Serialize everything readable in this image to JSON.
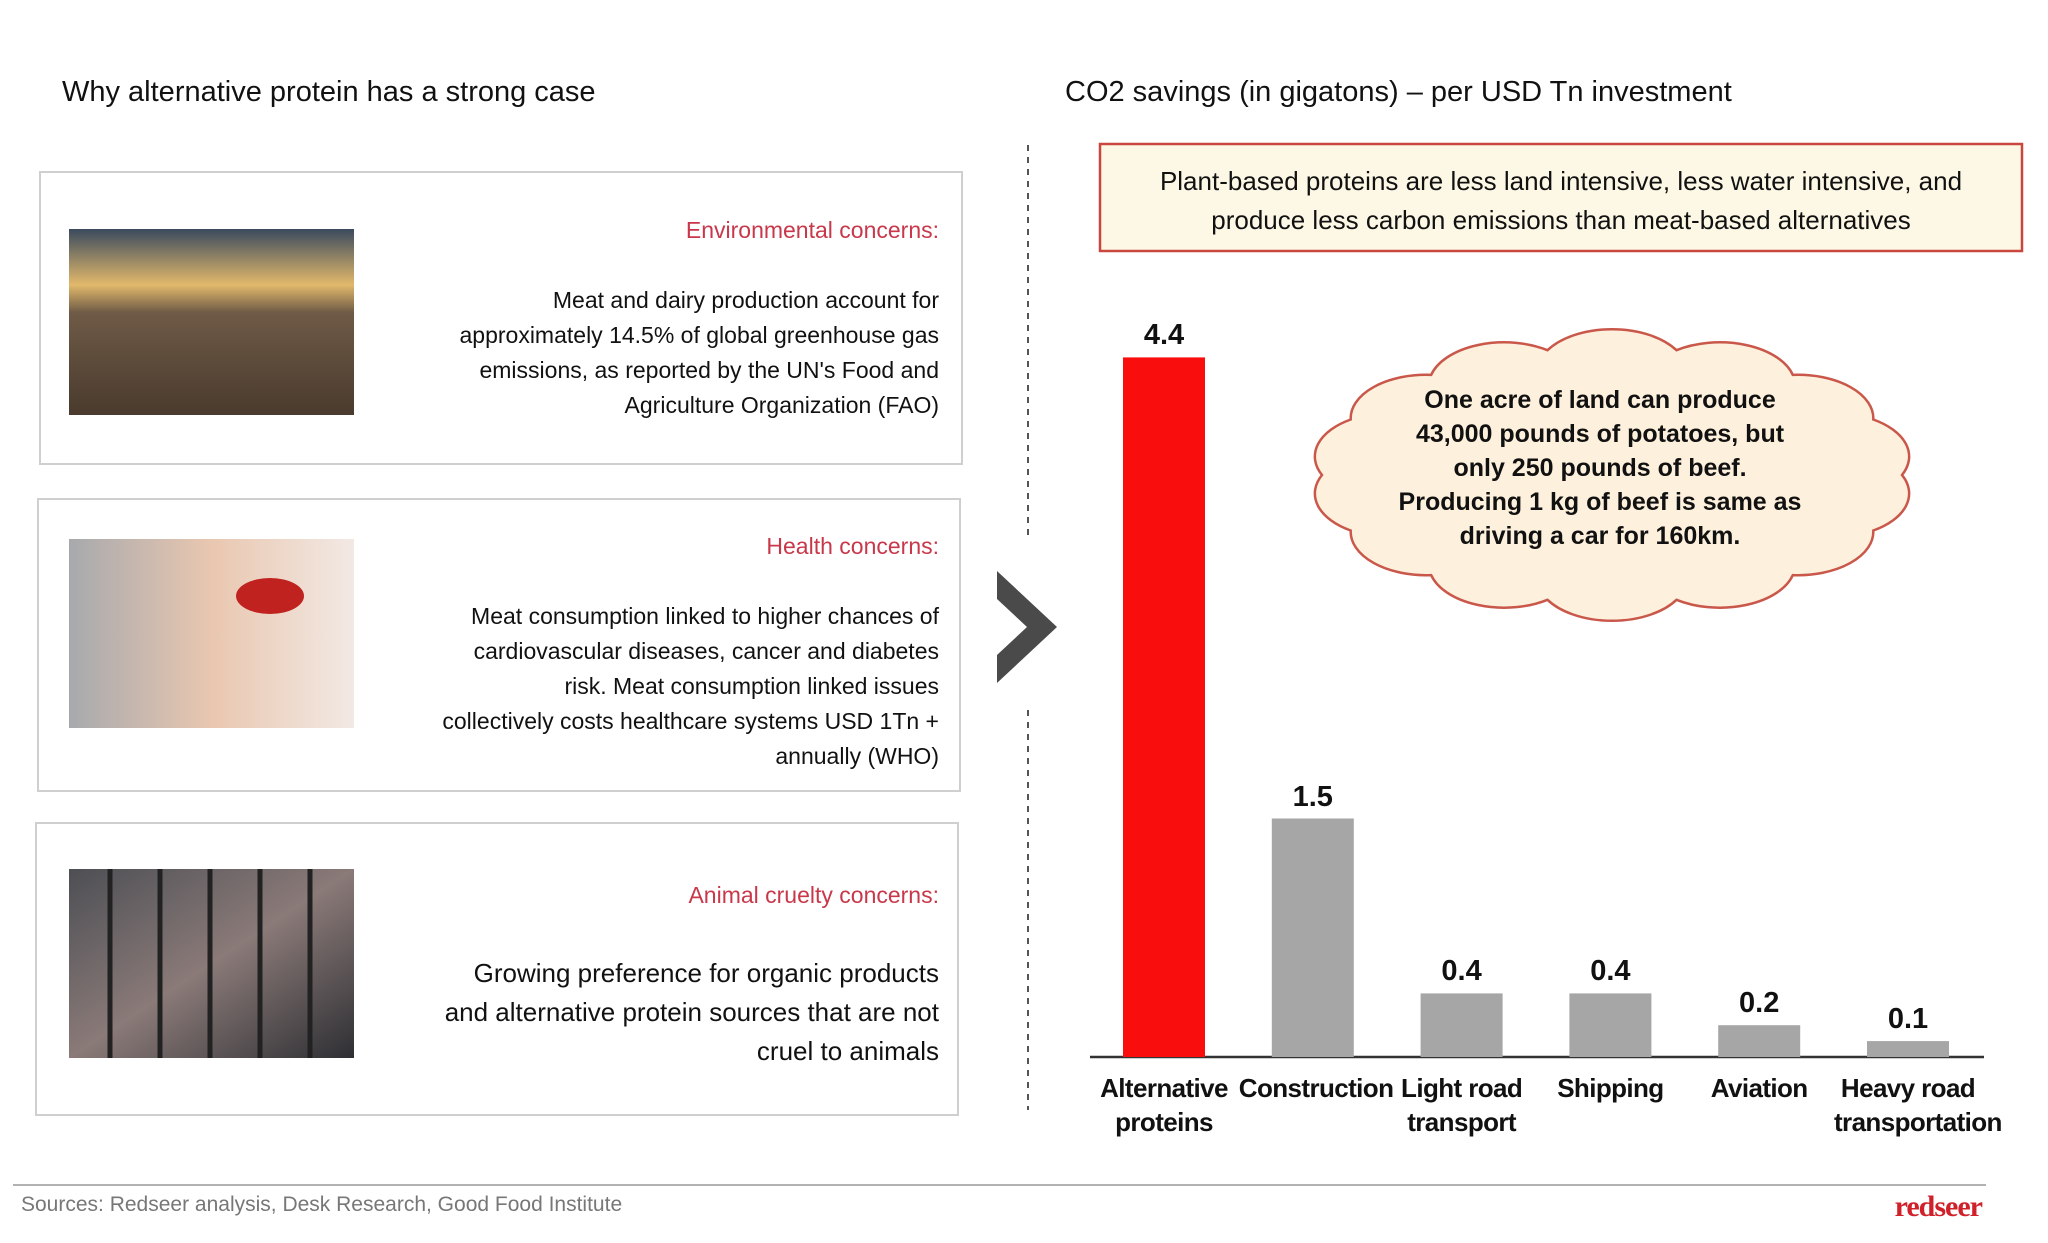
{
  "left": {
    "title": "Why alternative protein has a strong case",
    "cards": [
      {
        "heading": "Environmental concerns:",
        "lines": [
          "Meat and dairy production account for",
          "approximately 14.5% of global greenhouse gas",
          "emissions, as reported by the UN's Food and",
          "Agriculture Organization (FAO)"
        ]
      },
      {
        "heading": "Health concerns:",
        "lines": [
          "Meat consumption linked to higher chances of",
          "cardiovascular diseases, cancer and diabetes",
          "risk. Meat consumption linked issues",
          "collectively costs healthcare systems USD 1Tn +",
          "annually (WHO)"
        ]
      },
      {
        "heading": "Animal cruelty concerns:",
        "lines": [
          "Growing preference for organic products",
          "and alternative protein sources that are not",
          "cruel to animals"
        ]
      }
    ]
  },
  "chart_data": {
    "type": "bar",
    "title": "CO2 savings (in gigatons) – per USD Tn investment",
    "callout": [
      "Plant-based proteins are less land intensive, less water intensive, and",
      "produce less carbon emissions than meat-based alternatives"
    ],
    "cloud": [
      "One acre of land can produce",
      "43,000 pounds of potatoes, but",
      "only 250 pounds of beef.",
      "Producing 1 kg of beef is same as",
      "driving a car for 160km."
    ],
    "categories": [
      "Alternative proteins",
      "Construction",
      "Light road transport",
      "Shipping",
      "Aviation",
      "Heavy road transportation"
    ],
    "values": [
      4.4,
      1.5,
      0.4,
      0.4,
      0.2,
      0.1
    ],
    "colors": [
      "#f90d0d",
      "#a6a6a6",
      "#a6a6a6",
      "#a6a6a6",
      "#a6a6a6",
      "#a6a6a6"
    ]
  },
  "footer": {
    "sources": "Sources: Redseer analysis, Desk Research, Good Food Institute",
    "logo": "redseer"
  }
}
